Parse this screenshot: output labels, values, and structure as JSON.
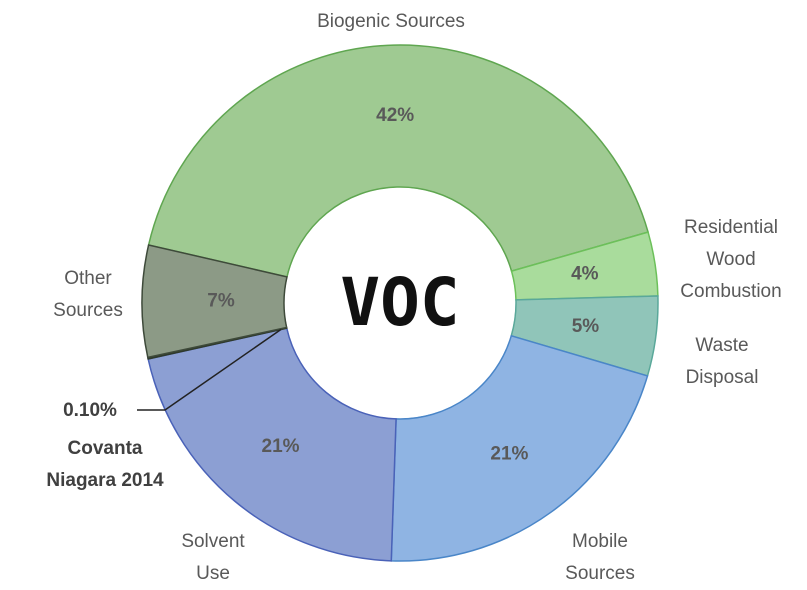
{
  "chart_data": {
    "type": "donut",
    "center_label": "VOC",
    "categories": [
      "Biogenic Sources",
      "Residential Wood Combustion",
      "Waste Disposal",
      "Mobile Sources",
      "Solvent Use",
      "Covanta Niagara 2014",
      "Other Sources"
    ],
    "values": [
      42,
      4,
      5,
      21,
      21,
      0.1,
      7
    ],
    "value_labels": [
      "42%",
      "4%",
      "5%",
      "21%",
      "21%",
      "0.10%",
      "7%"
    ],
    "colors": [
      "#9fca92",
      "#a9dc9c",
      "#90c5b9",
      "#8fb4e3",
      "#8c9fd3",
      "#2f3a2c",
      "#8c9a86"
    ],
    "borders": [
      "#5fa650",
      "#6cc05a",
      "#5aa89a",
      "#4a86c8",
      "#4a62b8",
      "#2f3a2c",
      "#3e4a3a"
    ]
  }
}
